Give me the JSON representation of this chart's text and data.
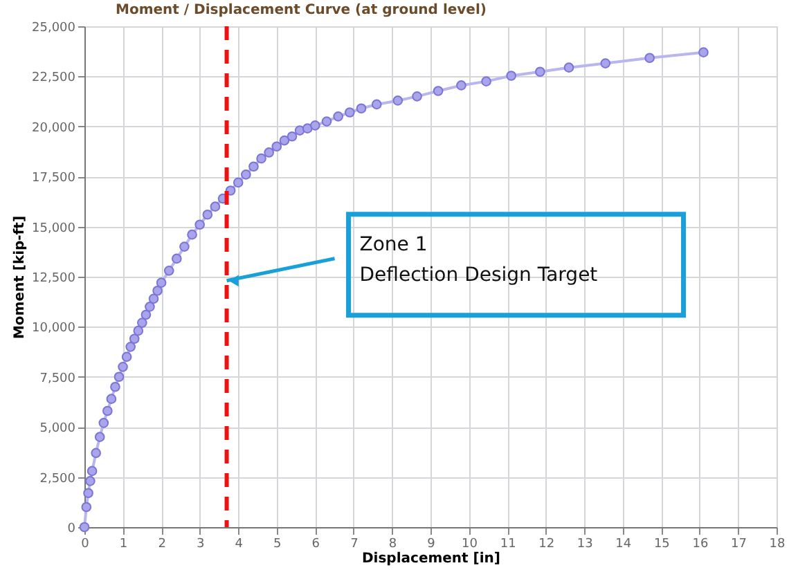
{
  "chart_data": {
    "type": "line",
    "title": "Moment / Displacement Curve (at ground level)",
    "xlabel": "Displacement [in]",
    "ylabel": "Moment [kip-ft]",
    "x": [
      0,
      0.05,
      0.1,
      0.15,
      0.2,
      0.3,
      0.4,
      0.5,
      0.6,
      0.7,
      0.8,
      0.9,
      1.0,
      1.1,
      1.2,
      1.3,
      1.4,
      1.5,
      1.6,
      1.7,
      1.8,
      1.9,
      2.0,
      2.2,
      2.4,
      2.6,
      2.8,
      3.0,
      3.2,
      3.4,
      3.6,
      3.8,
      4.0,
      4.2,
      4.4,
      4.6,
      4.8,
      5.0,
      5.2,
      5.4,
      5.6,
      5.8,
      6.0,
      6.3,
      6.6,
      6.9,
      7.2,
      7.6,
      8.15,
      8.65,
      9.2,
      9.8,
      10.45,
      11.1,
      11.85,
      12.6,
      13.55,
      14.7,
      16.1
    ],
    "series": [
      {
        "color": "#7b74d6",
        "values": [
          0,
          1000,
          1700,
          2300,
          2800,
          3700,
          4500,
          5200,
          5800,
          6400,
          7000,
          7500,
          8000,
          8500,
          9000,
          9400,
          9800,
          10200,
          10600,
          11000,
          11400,
          11800,
          12200,
          12800,
          13400,
          14000,
          14600,
          15100,
          15600,
          16000,
          16400,
          16800,
          17200,
          17600,
          18000,
          18400,
          18700,
          19000,
          19300,
          19500,
          19800,
          19900,
          20050,
          20250,
          20500,
          20700,
          20900,
          21100,
          21290,
          21500,
          21770,
          22050,
          22250,
          22530,
          22730,
          22940,
          23150,
          23420,
          23700
        ]
      }
    ],
    "marker": "circle",
    "grid": true,
    "xlim": [
      0,
      18
    ],
    "xticks": [
      0,
      1,
      2,
      3,
      4,
      5,
      6,
      7,
      8,
      9,
      10,
      11,
      12,
      13,
      14,
      15,
      16,
      17,
      18
    ],
    "ylim": [
      0,
      25000
    ],
    "yticks": [
      0,
      {
        "value": 2500,
        "label": "2,500"
      },
      {
        "value": 5000,
        "label": "5,000"
      },
      {
        "value": 7500,
        "label": "7,500"
      },
      {
        "value": 10000,
        "label": "10,000"
      },
      {
        "value": 12500,
        "label": "12,500"
      },
      {
        "value": 15000,
        "label": "15,000"
      },
      {
        "value": 17500,
        "label": "17,500"
      },
      {
        "value": 20000,
        "label": "20,000"
      },
      {
        "value": 22500,
        "label": "22,500"
      },
      {
        "value": 25000,
        "label": "25,000"
      }
    ],
    "ref_lines": [
      {
        "axis": "x",
        "value": 3.7,
        "color": "#ee1111",
        "line_style": "dashed"
      }
    ],
    "annotations": [
      {
        "text": "Zone 1\nDeflection Design Target",
        "x": 3.7,
        "y": 12300
      }
    ]
  }
}
